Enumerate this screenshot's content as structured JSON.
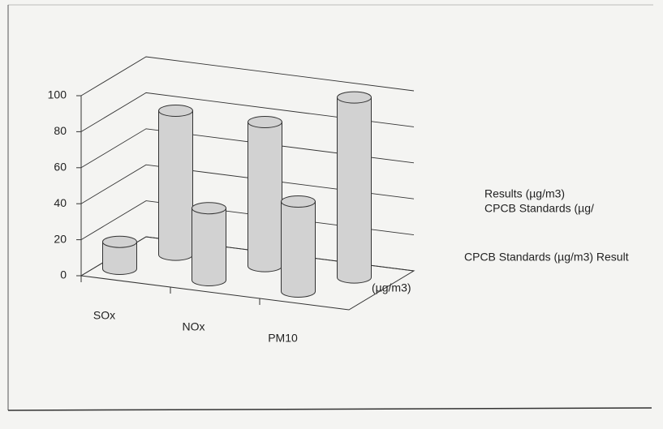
{
  "chart_data": {
    "type": "bar",
    "categories": [
      "SOx",
      "NOx",
      "PM10"
    ],
    "series": [
      {
        "name": "Results (µg/m3)",
        "color": "#d2d2d2",
        "values": [
          15,
          40,
          50
        ]
      },
      {
        "name": "CPCB Standards (µg/",
        "color": "#d2d2d2",
        "values": [
          80,
          80,
          100
        ]
      }
    ],
    "depth_labels": [
      "(µg/m3)",
      "CPCB Standards (µg/m3) Result"
    ],
    "ylim": [
      0,
      100
    ],
    "yticks": [
      0,
      20,
      40,
      60,
      80,
      100
    ],
    "grid": true
  }
}
